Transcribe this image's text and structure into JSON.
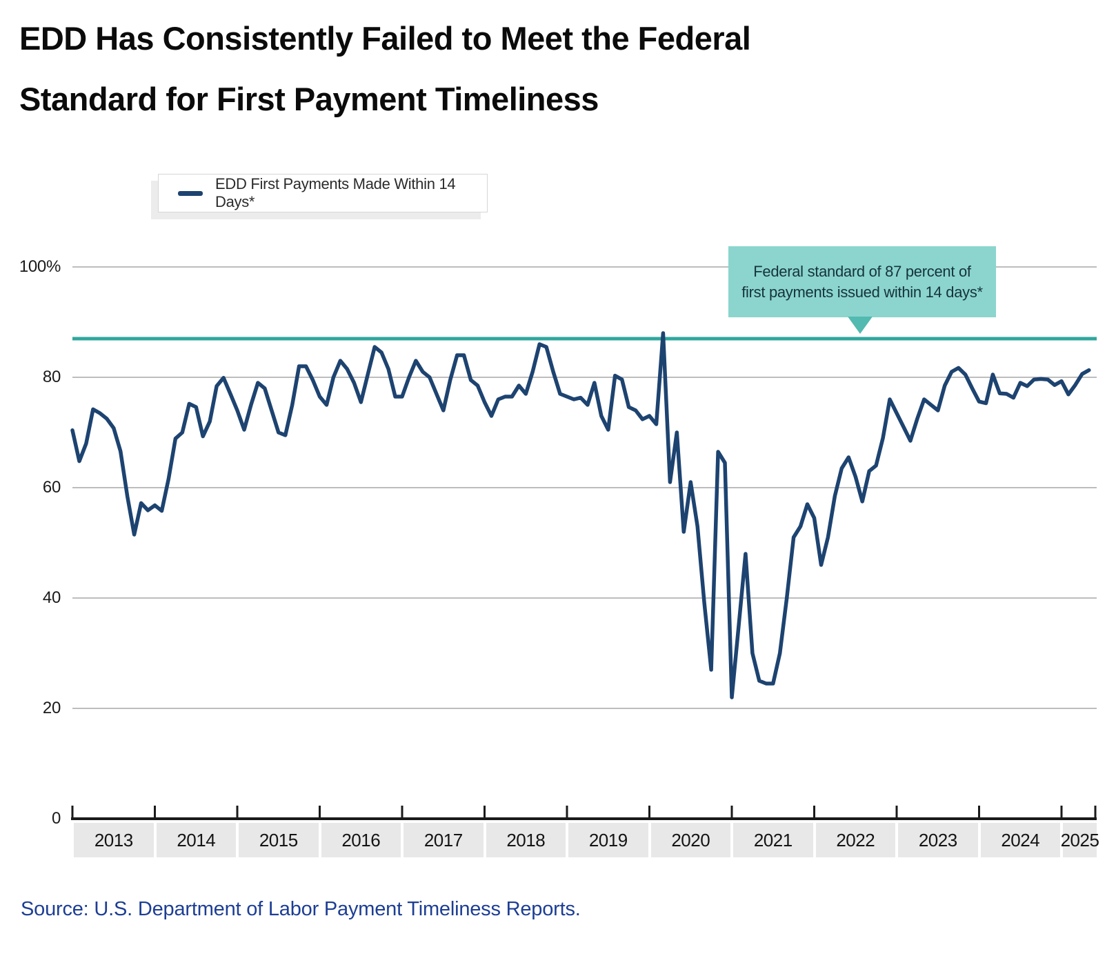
{
  "title": {
    "line1": "EDD Has Consistently Failed to Meet the Federal",
    "line2": "Standard for First Payment Timeliness"
  },
  "legend": {
    "label": "EDD First Payments Made Within 14 Days*"
  },
  "annotation": {
    "line1": "Federal standard of 87 percent of",
    "line2": "first payments issued within 14 days*"
  },
  "source": "Source: U.S. Department of Labor Payment Timeliness Reports.",
  "colors": {
    "data_line": "#1d4370",
    "standard_line": "#2fa79d",
    "annotation_bg": "#8bd5ce",
    "annotation_pointer": "#52bab0",
    "gridline": "#bdbdbd",
    "axis": "#1a1a1a",
    "year_band_bg": "#e8e8e8",
    "source_text": "#1d3e94"
  },
  "chart_data": {
    "type": "line",
    "title": "EDD Has Consistently Failed to Meet the Federal Standard for First Payment Timeliness",
    "series_name": "EDD First Payments Made Within 14 Days*",
    "unit": "percent of first payments made within 14 days",
    "x_start": "2013-01",
    "x_end": "2025-05",
    "ylim": [
      0,
      100
    ],
    "grid": true,
    "legend_position": "top-left",
    "reference_line": {
      "value": 87,
      "label": "Federal standard of 87 percent of first payments issued within 14 days*"
    },
    "y_ticks": [
      {
        "value": 100,
        "label": "100%"
      },
      {
        "value": 80,
        "label": "80"
      },
      {
        "value": 60,
        "label": "60"
      },
      {
        "value": 40,
        "label": "40"
      },
      {
        "value": 20,
        "label": "20"
      },
      {
        "value": 0,
        "label": "0"
      }
    ],
    "year_labels": [
      "2013",
      "2014",
      "2015",
      "2016",
      "2017",
      "2018",
      "2019",
      "2020",
      "2021",
      "2022",
      "2023",
      "2024",
      "2025"
    ],
    "values_by_year": [
      {
        "year": "2013",
        "values": [
          70.4,
          64.8,
          68,
          74.2,
          73.5,
          72.5,
          70.8,
          66.6,
          58.4,
          51.5,
          57.2,
          55.9
        ]
      },
      {
        "year": "2014",
        "values": [
          56.8,
          55.8,
          61.6,
          68.9,
          70,
          75.2,
          74.6,
          69.3,
          72,
          78.4,
          79.9,
          77
        ]
      },
      {
        "year": "2015",
        "values": [
          74,
          70.5,
          75,
          79,
          78,
          74,
          70,
          69.5,
          75,
          82,
          82,
          79.5
        ]
      },
      {
        "year": "2016",
        "values": [
          76.5,
          75,
          80,
          83,
          81.5,
          79,
          75.5,
          80.5,
          85.5,
          84.5,
          81.5,
          76.5
        ]
      },
      {
        "year": "2017",
        "values": [
          76.5,
          80,
          83,
          81,
          80,
          77,
          74,
          79.5,
          84,
          84,
          79.5,
          78.5
        ]
      },
      {
        "year": "2018",
        "values": [
          75.5,
          73,
          76,
          76.5,
          76.5,
          78.5,
          77,
          81,
          86,
          85.5,
          81,
          77
        ]
      },
      {
        "year": "2019",
        "values": [
          76.5,
          76,
          76.3,
          75,
          79,
          73,
          70.5,
          80.3,
          79.6,
          74.6,
          74,
          72.4
        ]
      },
      {
        "year": "2020",
        "values": [
          73,
          71.5,
          88,
          61,
          70,
          52,
          61,
          53,
          39,
          27,
          66.5,
          64.5
        ]
      },
      {
        "year": "2021",
        "values": [
          22,
          35,
          48,
          30,
          25,
          24.5,
          24.5,
          30,
          40,
          51,
          53,
          57
        ]
      },
      {
        "year": "2022",
        "values": [
          54.5,
          46,
          51,
          58.5,
          63.5,
          65.5,
          62,
          57.5,
          63,
          64,
          69,
          76
        ]
      },
      {
        "year": "2023",
        "values": [
          73.5,
          71,
          68.5,
          72.5,
          76,
          75,
          74,
          78.5,
          81,
          81.7,
          80.5,
          78
        ]
      },
      {
        "year": "2024",
        "values": [
          75.6,
          75.3,
          80.5,
          77.1,
          77,
          76.3,
          79,
          78.4,
          79.6,
          79.7,
          79.6,
          78.6
        ]
      },
      {
        "year": "2025",
        "values": [
          79.3,
          76.9,
          78.6,
          80.6,
          81.3
        ]
      }
    ]
  }
}
